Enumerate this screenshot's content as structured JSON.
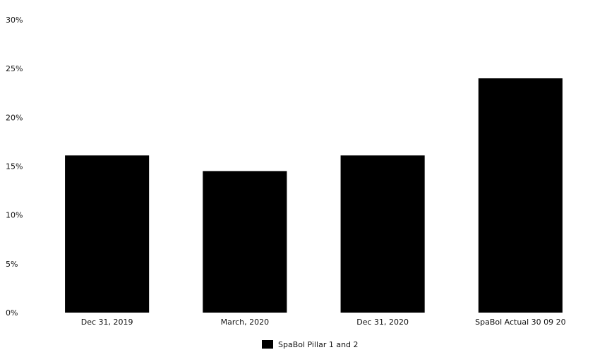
{
  "chart_data": {
    "type": "bar",
    "title": "",
    "xlabel": "",
    "ylabel": "",
    "categories": [
      "Dec 31, 2019",
      "March, 2020",
      "Dec 31, 2020",
      "SpaBol Actual 30 09 20"
    ],
    "series": [
      {
        "name": "SpaBol Pillar 1 and 2",
        "values": [
          16.1,
          14.5,
          16.1,
          24.0
        ],
        "color": "#000000"
      }
    ],
    "ylim": [
      0,
      30
    ],
    "yticks": [
      0,
      5,
      10,
      15,
      20,
      25,
      30
    ],
    "ytick_labels": [
      "0%",
      "5%",
      "10%",
      "15%",
      "20%",
      "25%",
      "30%"
    ],
    "grid": false,
    "legend_position": "bottom-center"
  }
}
